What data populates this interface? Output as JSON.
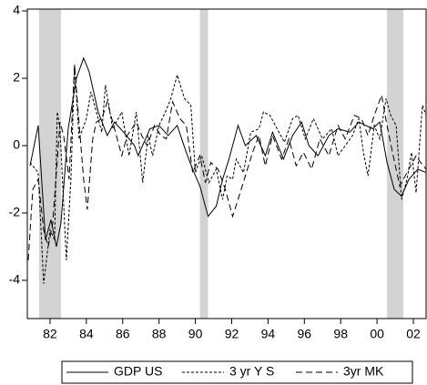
{
  "chart_data": {
    "type": "line",
    "xlim": [
      1980.75,
      2002.7
    ],
    "xticks": [
      {
        "value": 1982,
        "label": "82"
      },
      {
        "value": 1984,
        "label": "84"
      },
      {
        "value": 1986,
        "label": "86"
      },
      {
        "value": 1988,
        "label": "88"
      },
      {
        "value": 1990,
        "label": "90"
      },
      {
        "value": 1992,
        "label": "92"
      },
      {
        "value": 1994,
        "label": "94"
      },
      {
        "value": 1996,
        "label": "96"
      },
      {
        "value": 1998,
        "label": "98"
      },
      {
        "value": 2000,
        "label": "00"
      },
      {
        "value": 2002,
        "label": "02"
      }
    ],
    "ylim": [
      -5,
      4
    ],
    "yticks": [
      -4,
      -2,
      0,
      2,
      4
    ],
    "shaded_periods": [
      [
        1981.4,
        1982.6
      ],
      [
        1990.25,
        1990.7
      ],
      [
        2000.55,
        2001.45
      ]
    ],
    "shade_color": "#d3d3d3",
    "legend": "bottom",
    "series": [
      {
        "name": "GDP US",
        "color": "#000000",
        "line_style": "solid",
        "x": [
          1980.9,
          1981.35,
          1981.75,
          1982.05,
          1982.35,
          1982.6,
          1983.0,
          1983.45,
          1983.85,
          1984.15,
          1984.65,
          1985.15,
          1985.55,
          1986.05,
          1986.65,
          1986.85,
          1987.5,
          1988.0,
          1988.5,
          1989.0,
          1989.5,
          1989.85,
          1990.25,
          1990.7,
          1991.15,
          1991.5,
          1991.85,
          1992.35,
          1992.75,
          1993.35,
          1993.85,
          1994.25,
          1994.85,
          1995.35,
          1995.85,
          1996.25,
          1996.75,
          1997.35,
          1997.85,
          1998.5,
          1999.0,
          1999.75,
          2000.15,
          2000.55,
          2000.95,
          2001.35,
          2001.75,
          2002.25,
          2002.7
        ],
        "values": [
          -0.6,
          0.6,
          -2.8,
          -2.2,
          -3.0,
          -2.3,
          0.5,
          2.0,
          2.6,
          2.2,
          1.0,
          0.3,
          0.7,
          0.4,
          0.0,
          -0.3,
          0.5,
          0.6,
          0.3,
          0.6,
          -0.2,
          -0.7,
          -1.2,
          -2.1,
          -1.8,
          -1.0,
          -0.4,
          0.6,
          0.0,
          0.3,
          -0.3,
          0.4,
          -0.4,
          0.3,
          0.7,
          0.0,
          -0.3,
          0.3,
          0.5,
          0.4,
          0.7,
          0.5,
          0.7,
          -0.5,
          -1.3,
          -1.5,
          -1.0,
          -0.7,
          -0.8
        ]
      },
      {
        "name": "3 yr Y S",
        "color": "#000000",
        "line_style": "dotted",
        "x": [
          1980.9,
          1981.35,
          1981.65,
          1982.0,
          1982.25,
          1982.4,
          1982.55,
          1982.9,
          1983.15,
          1983.35,
          1983.6,
          1984.0,
          1984.25,
          1984.65,
          1984.85,
          1985.05,
          1985.45,
          1985.95,
          1986.35,
          1986.75,
          1987.1,
          1987.4,
          1987.65,
          1988.0,
          1988.35,
          1988.65,
          1989.0,
          1989.4,
          1989.75,
          1990.0,
          1990.35,
          1990.75,
          1991.15,
          1991.5,
          1991.75,
          1992.05,
          1992.25,
          1992.65,
          1993.05,
          1993.5,
          1993.75,
          1994.1,
          1994.5,
          1994.9,
          1995.35,
          1995.65,
          1996.05,
          1996.5,
          1997.0,
          1997.5,
          1997.85,
          1998.25,
          1998.65,
          1999.0,
          1999.25,
          1999.5,
          1999.85,
          2000.15,
          2000.5,
          2000.75,
          2001.05,
          2001.35,
          2001.65,
          2001.9,
          2002.15,
          2002.5,
          2002.7
        ],
        "values": [
          -0.5,
          -0.8,
          -4.1,
          -2.5,
          -2.8,
          1.0,
          0.5,
          -3.4,
          -1.0,
          2.4,
          0.2,
          0.8,
          1.6,
          0.8,
          0.4,
          1.8,
          0.5,
          1.0,
          -0.3,
          1.0,
          -1.1,
          0.3,
          -0.3,
          0.6,
          1.0,
          1.4,
          2.1,
          1.4,
          1.2,
          -0.8,
          -0.3,
          -1.1,
          -0.7,
          -1.6,
          -0.9,
          -1.0,
          -0.4,
          -0.8,
          0.4,
          0.5,
          1.0,
          0.9,
          0.5,
          0.1,
          0.8,
          0.9,
          0.2,
          0.8,
          0.2,
          0.5,
          -0.3,
          0.0,
          0.3,
          0.8,
          -0.2,
          -0.9,
          0.6,
          0.2,
          1.4,
          0.9,
          0.6,
          -1.6,
          -1.0,
          -0.2,
          -1.4,
          1.2,
          0.9
        ]
      },
      {
        "name": "3yr MK",
        "color": "#000000",
        "line_style": "dashed",
        "x": [
          1980.8,
          1981.05,
          1981.35,
          1981.65,
          1981.9,
          1982.15,
          1982.55,
          1982.75,
          1983.05,
          1983.35,
          1983.55,
          1983.85,
          1984.05,
          1984.35,
          1984.55,
          1984.85,
          1985.15,
          1985.55,
          1985.95,
          1986.25,
          1986.75,
          1987.05,
          1987.35,
          1987.75,
          1988.1,
          1988.4,
          1988.75,
          1989.15,
          1989.5,
          1989.85,
          1990.25,
          1990.55,
          1990.85,
          1991.25,
          1991.65,
          1992.05,
          1992.35,
          1992.75,
          1993.15,
          1993.5,
          1993.85,
          1994.25,
          1994.75,
          1995.15,
          1995.55,
          1995.95,
          1996.4,
          1996.85,
          1997.35,
          1997.85,
          1998.25,
          1998.75,
          1999.15,
          1999.5,
          1999.85,
          2000.25,
          2000.55,
          2000.85,
          2001.25,
          2001.55,
          2001.85,
          2002.15,
          2002.4,
          2002.7
        ],
        "values": [
          -3.4,
          -1.3,
          -1.0,
          -2.5,
          -3.0,
          -2.3,
          0.7,
          0.3,
          -1.0,
          2.4,
          1.0,
          -1.0,
          -1.9,
          0.2,
          0.7,
          0.8,
          1.3,
          0.5,
          -0.3,
          0.3,
          0.7,
          0.3,
          0.0,
          0.6,
          0.3,
          0.2,
          1.3,
          0.8,
          0.6,
          -0.8,
          -0.3,
          -1.1,
          -0.5,
          -0.7,
          -1.3,
          -2.1,
          -1.6,
          -0.9,
          -0.2,
          0.3,
          -0.6,
          0.3,
          -0.4,
          0.2,
          -0.6,
          -0.2,
          -0.7,
          0.2,
          -0.3,
          0.6,
          0.2,
          0.9,
          0.8,
          0.3,
          0.9,
          1.5,
          0.6,
          -0.2,
          -1.2,
          -0.9,
          -0.6,
          -0.3,
          -0.5,
          -0.7
        ]
      }
    ]
  }
}
